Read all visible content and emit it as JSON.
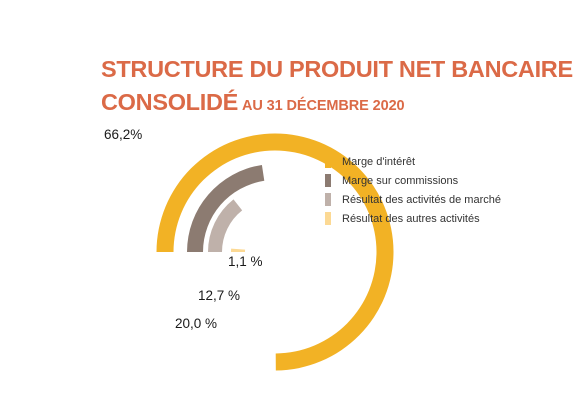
{
  "title": {
    "line1": "STRUCTURE DU PRODUIT NET BANCAIRE",
    "line2": "CONSOLIDÉ",
    "line2_sub": "AU 31 DÉCEMBRE 2020"
  },
  "chart_data": {
    "type": "radial-bar",
    "title": "STRUCTURE DU PRODUIT NET BANCAIRE CONSOLIDÉ AU 31 DÉCEMBRE 2020",
    "unit": "%",
    "series": [
      {
        "name": "Marge d'intérêt",
        "value": 66.2,
        "label": "66,2%",
        "color": "#f2b225"
      },
      {
        "name": "Marge sur commissions",
        "value": 20.0,
        "label": "20,0 %",
        "color": "#8c7b71"
      },
      {
        "name": "Résultat des activités de marché",
        "value": 12.7,
        "label": "12,7 %",
        "color": "#bfb1aa"
      },
      {
        "name": "Résultat des autres activités",
        "value": 1.1,
        "label": "1,1 %",
        "color": "#fcd994"
      }
    ],
    "legend_position": "right"
  }
}
